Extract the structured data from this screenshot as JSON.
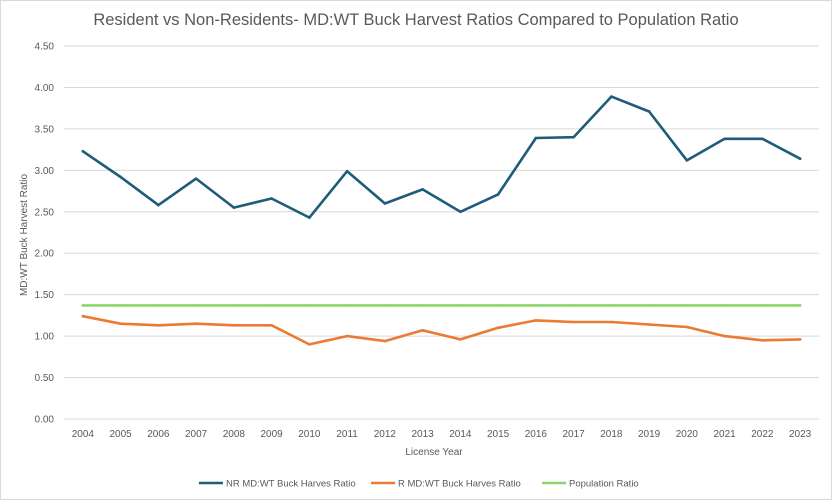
{
  "chart_data": {
    "type": "line",
    "title": "Resident vs Non-Residents- MD:WT Buck Harvest Ratios Compared to Population Ratio",
    "xlabel": "License Year",
    "ylabel": "MD:WT Buck Harvest Ratio",
    "ylim": [
      0,
      4.5
    ],
    "yticks": [
      "0.00",
      "0.50",
      "1.00",
      "1.50",
      "2.00",
      "2.50",
      "3.00",
      "3.50",
      "4.00",
      "4.50"
    ],
    "grid": "horizontal",
    "legend_position": "bottom",
    "categories": [
      "2004",
      "2005",
      "2006",
      "2007",
      "2008",
      "2009",
      "2010",
      "2011",
      "2012",
      "2013",
      "2014",
      "2015",
      "2016",
      "2017",
      "2018",
      "2019",
      "2020",
      "2021",
      "2022",
      "2023"
    ],
    "series": [
      {
        "name": "NR MD:WT Buck Harves Ratio",
        "color": "#1f5c7a",
        "values": [
          3.23,
          2.92,
          2.58,
          2.9,
          2.55,
          2.66,
          2.43,
          2.99,
          2.6,
          2.77,
          2.5,
          2.71,
          3.39,
          3.4,
          3.89,
          3.71,
          3.12,
          3.38,
          3.38,
          3.14
        ]
      },
      {
        "name": "R MD:WT Buck Harves Ratio",
        "color": "#e97b32",
        "values": [
          1.24,
          1.15,
          1.13,
          1.15,
          1.13,
          1.13,
          0.9,
          1.0,
          0.94,
          1.07,
          0.96,
          1.1,
          1.19,
          1.17,
          1.17,
          1.14,
          1.11,
          1.0,
          0.95,
          0.96
        ]
      },
      {
        "name": "Population Ratio",
        "color": "#8ed46f",
        "values": [
          1.37,
          1.37,
          1.37,
          1.37,
          1.37,
          1.37,
          1.37,
          1.37,
          1.37,
          1.37,
          1.37,
          1.37,
          1.37,
          1.37,
          1.37,
          1.37,
          1.37,
          1.37,
          1.37,
          1.37
        ]
      }
    ]
  }
}
